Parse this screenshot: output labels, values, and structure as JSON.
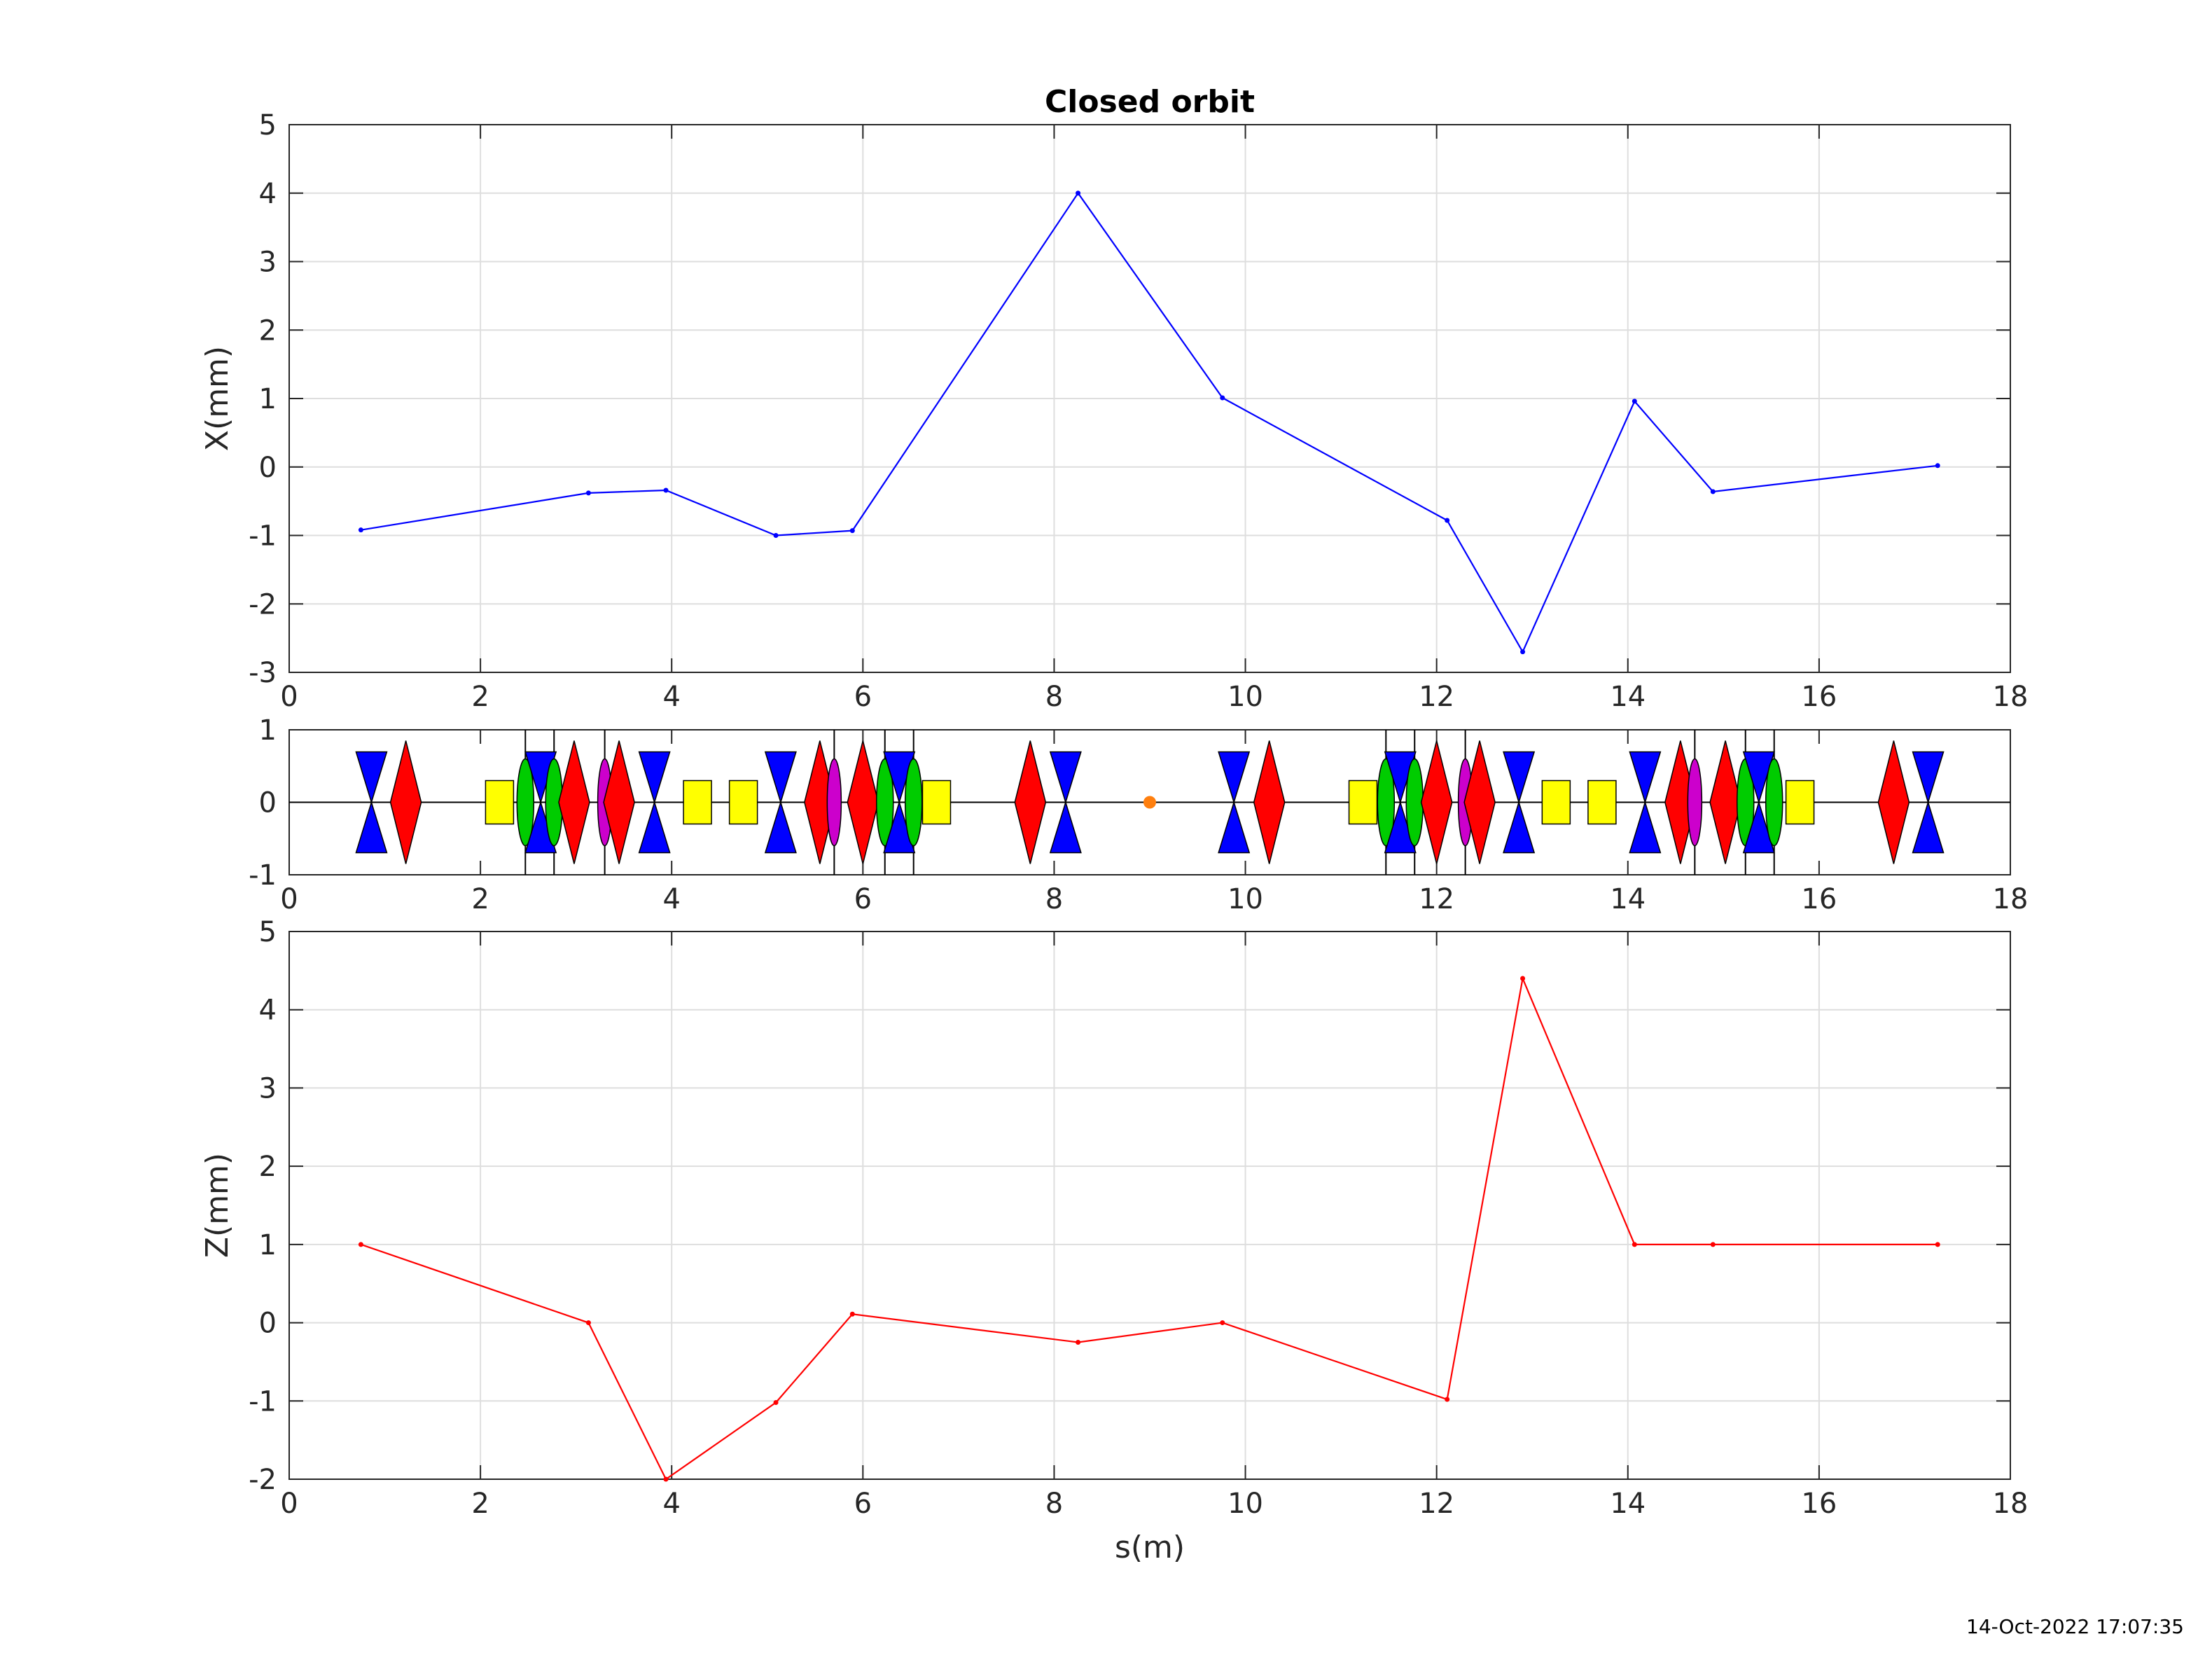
{
  "timestamp": "14-Oct-2022 17:07:35",
  "chart_data": [
    {
      "type": "line",
      "title": "Closed orbit",
      "xlabel": "",
      "ylabel": "X(mm)",
      "xlim": [
        0,
        18
      ],
      "ylim": [
        -3,
        5
      ],
      "xticks": [
        0,
        2,
        4,
        6,
        8,
        10,
        12,
        14,
        16,
        18
      ],
      "yticks": [
        -3,
        -2,
        -1,
        0,
        1,
        2,
        3,
        4,
        5
      ],
      "grid": true,
      "series": [
        {
          "color": "#0000ff",
          "x": [
            0.75,
            3.13,
            3.94,
            5.09,
            5.89,
            8.25,
            9.76,
            12.11,
            12.9,
            14.07,
            14.89,
            17.24
          ],
          "y": [
            -0.92,
            -0.38,
            -0.34,
            -1.0,
            -0.93,
            4.0,
            1.01,
            -0.78,
            -2.7,
            0.96,
            -0.36,
            0.02
          ]
        }
      ]
    },
    {
      "type": "lattice",
      "xlim": [
        0,
        18
      ],
      "ylim": [
        -1,
        1
      ],
      "xticks": [
        0,
        2,
        4,
        6,
        8,
        10,
        12,
        14,
        16,
        18
      ],
      "yticks": [
        -1,
        0,
        1
      ],
      "colors": {
        "quad_f": "#0000ff",
        "quad_d": "#ff0000",
        "sext": "#00cc00",
        "oct": "#cc00cc",
        "dipole": "#ffff00",
        "marker": "#ff7f0e"
      },
      "elements": [
        {
          "kind": "quad_f",
          "s": 0.86
        },
        {
          "kind": "quad_d",
          "s": 1.22
        },
        {
          "kind": "dipole",
          "s": 2.2
        },
        {
          "kind": "sext",
          "s": 2.47
        },
        {
          "kind": "quad_f",
          "s": 2.63
        },
        {
          "kind": "sext",
          "s": 2.77
        },
        {
          "kind": "quad_d",
          "s": 2.98
        },
        {
          "kind": "oct",
          "s": 3.3
        },
        {
          "kind": "quad_d",
          "s": 3.45
        },
        {
          "kind": "quad_f",
          "s": 3.82
        },
        {
          "kind": "dipole",
          "s": 4.27
        },
        {
          "kind": "dipole",
          "s": 4.75
        },
        {
          "kind": "quad_f",
          "s": 5.14
        },
        {
          "kind": "quad_d",
          "s": 5.55
        },
        {
          "kind": "oct",
          "s": 5.7
        },
        {
          "kind": "quad_d",
          "s": 6.0
        },
        {
          "kind": "sext",
          "s": 6.23
        },
        {
          "kind": "quad_f",
          "s": 6.38
        },
        {
          "kind": "sext",
          "s": 6.53
        },
        {
          "kind": "dipole",
          "s": 6.77
        },
        {
          "kind": "quad_d",
          "s": 7.75
        },
        {
          "kind": "quad_f",
          "s": 8.12
        },
        {
          "kind": "marker",
          "s": 9.0
        },
        {
          "kind": "quad_f",
          "s": 9.88
        },
        {
          "kind": "quad_d",
          "s": 10.25
        },
        {
          "kind": "dipole",
          "s": 11.23
        },
        {
          "kind": "sext",
          "s": 11.47
        },
        {
          "kind": "quad_f",
          "s": 11.62
        },
        {
          "kind": "sext",
          "s": 11.77
        },
        {
          "kind": "quad_d",
          "s": 12.0
        },
        {
          "kind": "oct",
          "s": 12.3
        },
        {
          "kind": "quad_d",
          "s": 12.45
        },
        {
          "kind": "quad_f",
          "s": 12.86
        },
        {
          "kind": "dipole",
          "s": 13.25
        },
        {
          "kind": "dipole",
          "s": 13.73
        },
        {
          "kind": "quad_f",
          "s": 14.18
        },
        {
          "kind": "quad_d",
          "s": 14.55
        },
        {
          "kind": "oct",
          "s": 14.7
        },
        {
          "kind": "quad_d",
          "s": 15.02
        },
        {
          "kind": "sext",
          "s": 15.23
        },
        {
          "kind": "quad_f",
          "s": 15.37
        },
        {
          "kind": "sext",
          "s": 15.53
        },
        {
          "kind": "dipole",
          "s": 15.8
        },
        {
          "kind": "quad_d",
          "s": 16.78
        },
        {
          "kind": "quad_f",
          "s": 17.14
        }
      ],
      "dividers": [
        2.47,
        2.77,
        3.3,
        5.7,
        6.23,
        6.53,
        11.47,
        11.77,
        12.3,
        14.7,
        15.23,
        15.53
      ]
    },
    {
      "type": "line",
      "title": "",
      "xlabel": "s(m)",
      "ylabel": "Z(mm)",
      "xlim": [
        0,
        18
      ],
      "ylim": [
        -2,
        5
      ],
      "xticks": [
        0,
        2,
        4,
        6,
        8,
        10,
        12,
        14,
        16,
        18
      ],
      "yticks": [
        -2,
        -1,
        0,
        1,
        2,
        3,
        4,
        5
      ],
      "grid": true,
      "series": [
        {
          "color": "#ff0000",
          "x": [
            0.75,
            3.13,
            3.94,
            5.09,
            5.89,
            8.25,
            9.76,
            12.11,
            12.9,
            14.07,
            14.89,
            17.24
          ],
          "y": [
            1.0,
            0.0,
            -2.0,
            -1.02,
            0.11,
            -0.25,
            0.0,
            -0.98,
            4.4,
            1.0,
            1.0,
            1.0
          ]
        }
      ]
    }
  ]
}
